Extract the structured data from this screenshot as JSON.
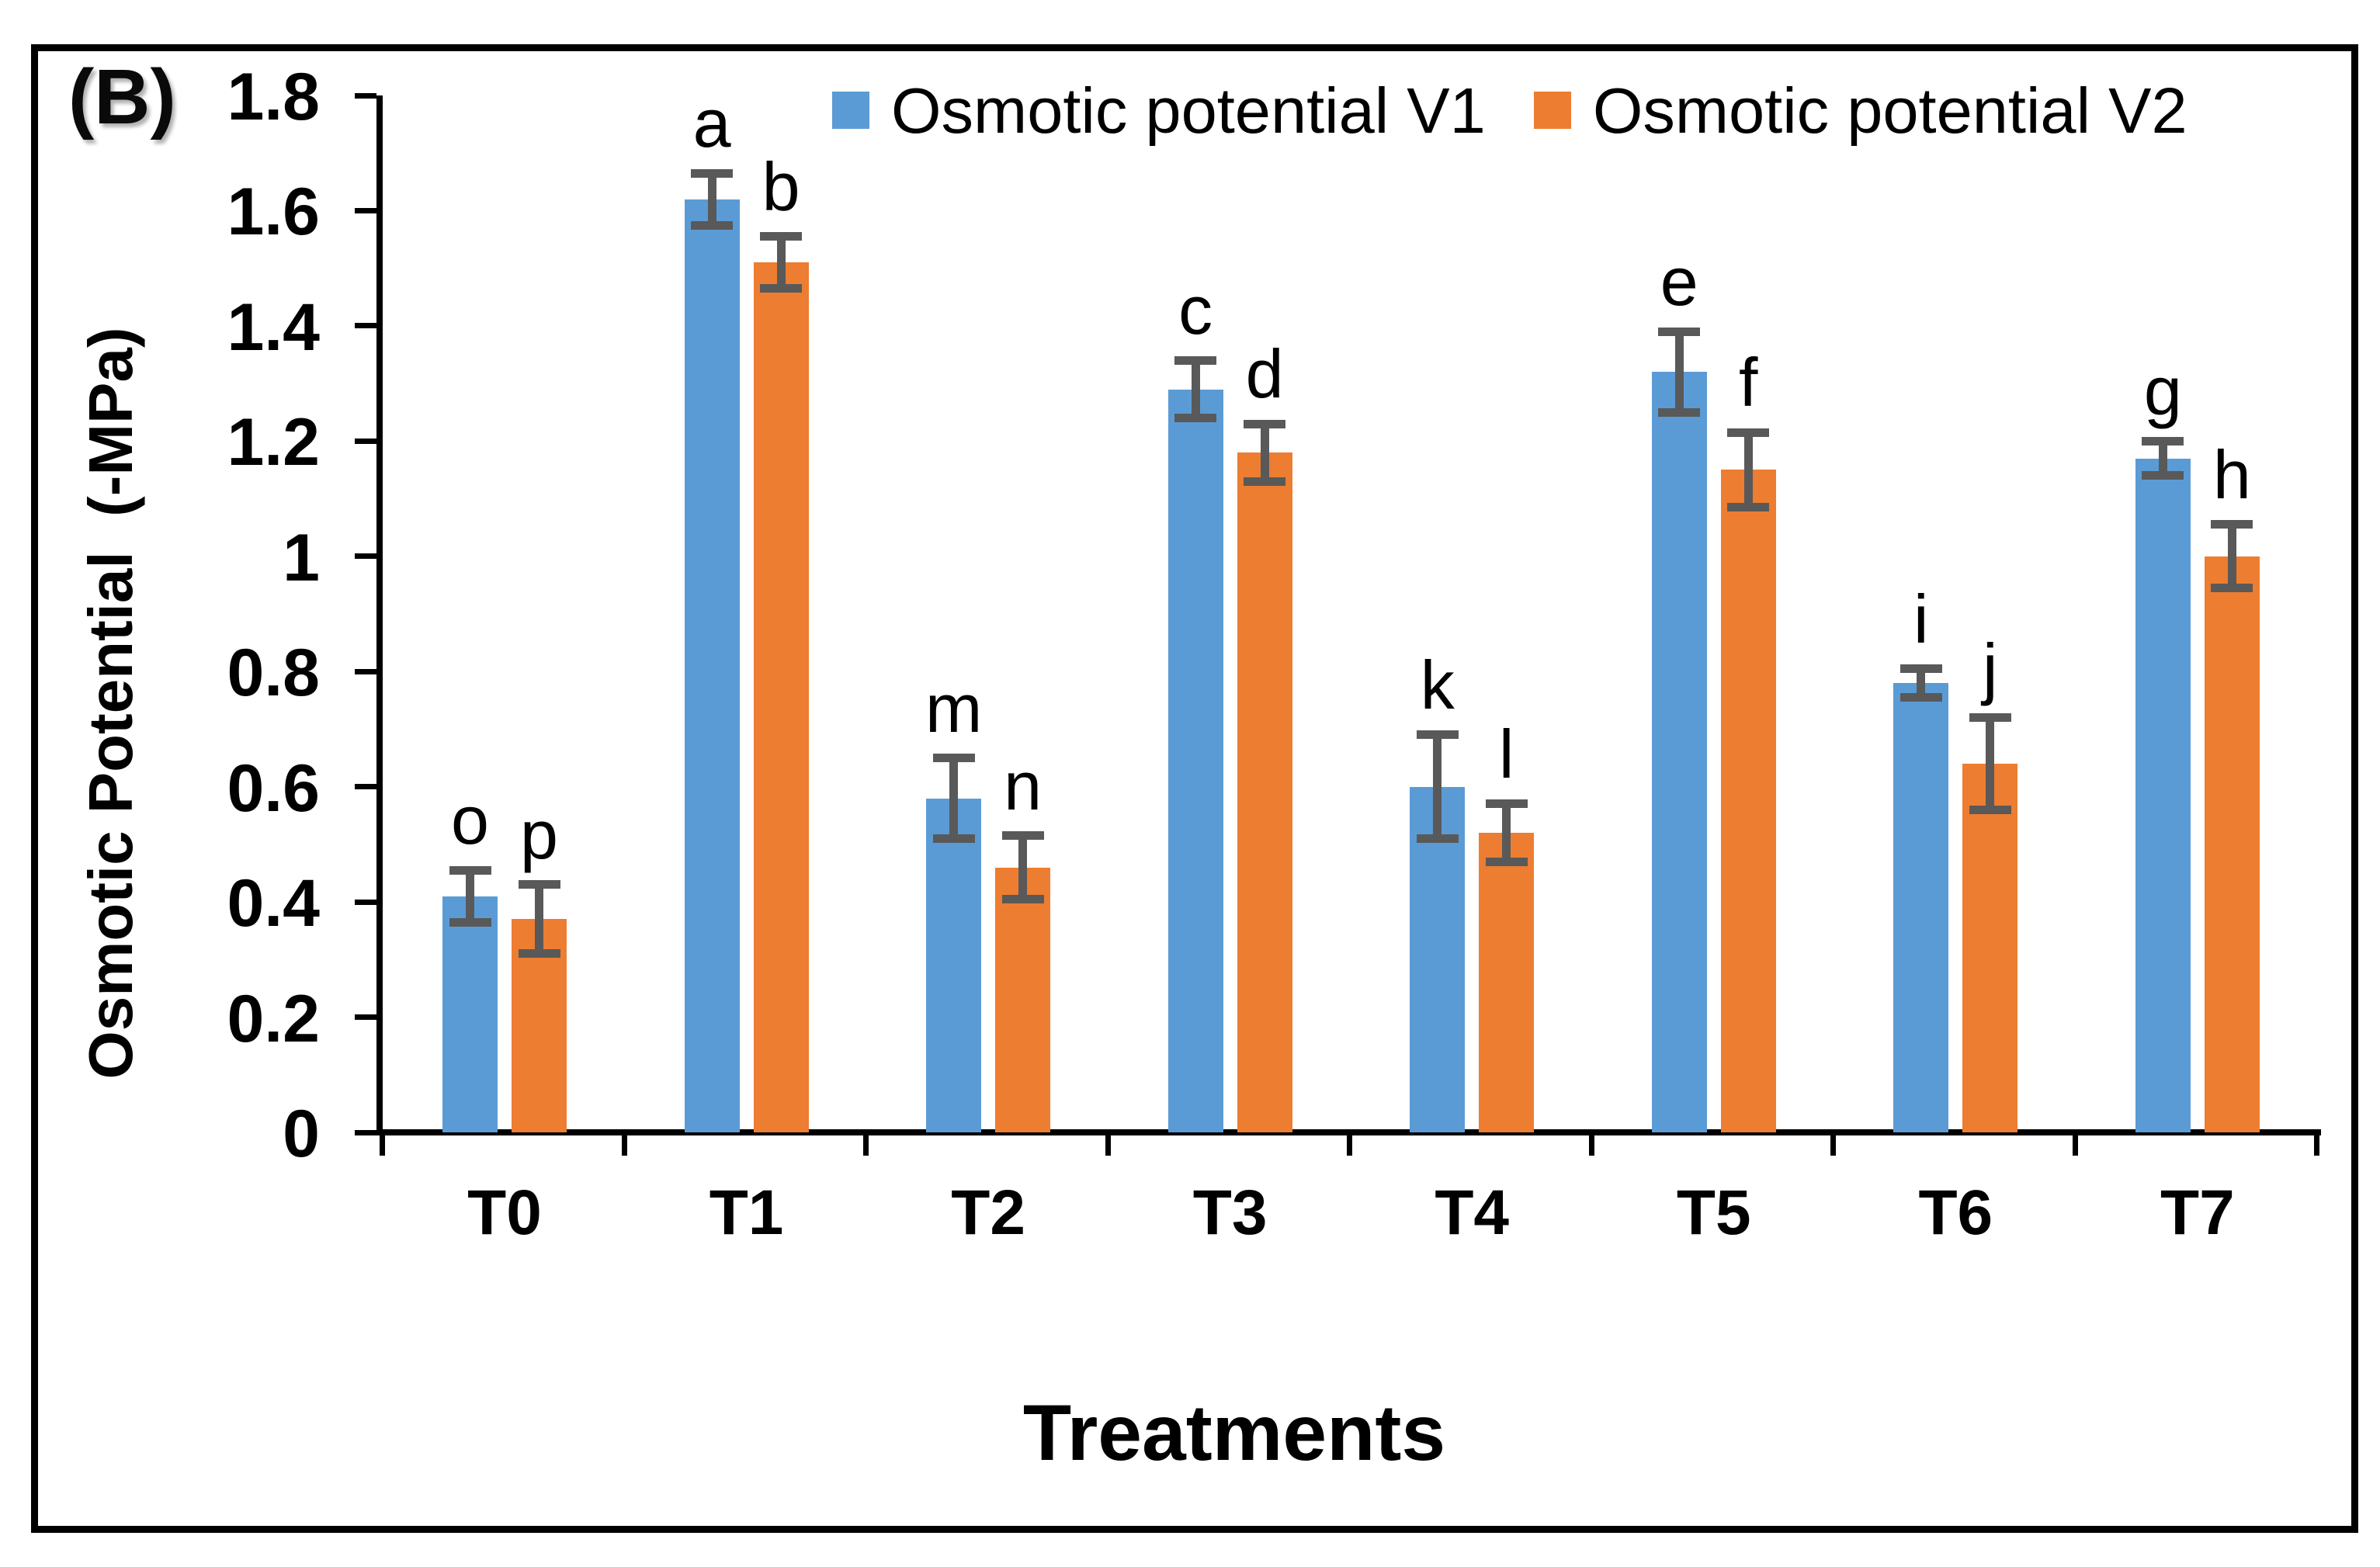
{
  "panel_label": "(B)",
  "legend": {
    "v1_label": "Osmotic potential V1",
    "v2_label": "Osmotic potential V2"
  },
  "chart_data": {
    "type": "bar",
    "title": "",
    "xlabel": "Treatments",
    "ylabel": "Osmotic Potential  (-MPa)",
    "ylim": [
      0,
      1.8
    ],
    "ytick_labels": [
      "1.8",
      "1.6",
      "1.4",
      "1.2",
      "1",
      "0.8",
      "0.6",
      "0.4",
      "0.2",
      "0"
    ],
    "ytick_values": [
      1.8,
      1.6,
      1.4,
      1.2,
      1.0,
      0.8,
      0.6,
      0.4,
      0.2,
      0
    ],
    "grid": false,
    "legend_position": "top",
    "categories": [
      "T0",
      "T1",
      "T2",
      "T3",
      "T4",
      "T5",
      "T6",
      "T7"
    ],
    "series": [
      {
        "name": "Osmotic potential V1",
        "color": "#5B9BD5",
        "values": [
          0.41,
          1.62,
          0.58,
          1.29,
          0.6,
          1.32,
          0.78,
          1.17
        ],
        "errors": [
          0.045,
          0.045,
          0.07,
          0.05,
          0.09,
          0.07,
          0.025,
          0.03
        ],
        "letters": [
          "o",
          "a",
          "m",
          "c",
          "k",
          "e",
          "i",
          "g"
        ]
      },
      {
        "name": "Osmotic potential V2",
        "color": "#ED7D31",
        "values": [
          0.37,
          1.51,
          0.46,
          1.18,
          0.52,
          1.15,
          0.64,
          1.0
        ],
        "errors": [
          0.06,
          0.045,
          0.055,
          0.05,
          0.05,
          0.065,
          0.08,
          0.055
        ],
        "letters": [
          "p",
          "b",
          "n",
          "d",
          "l",
          "f",
          "j",
          "h"
        ]
      }
    ],
    "error_bar_color": "#595959"
  }
}
